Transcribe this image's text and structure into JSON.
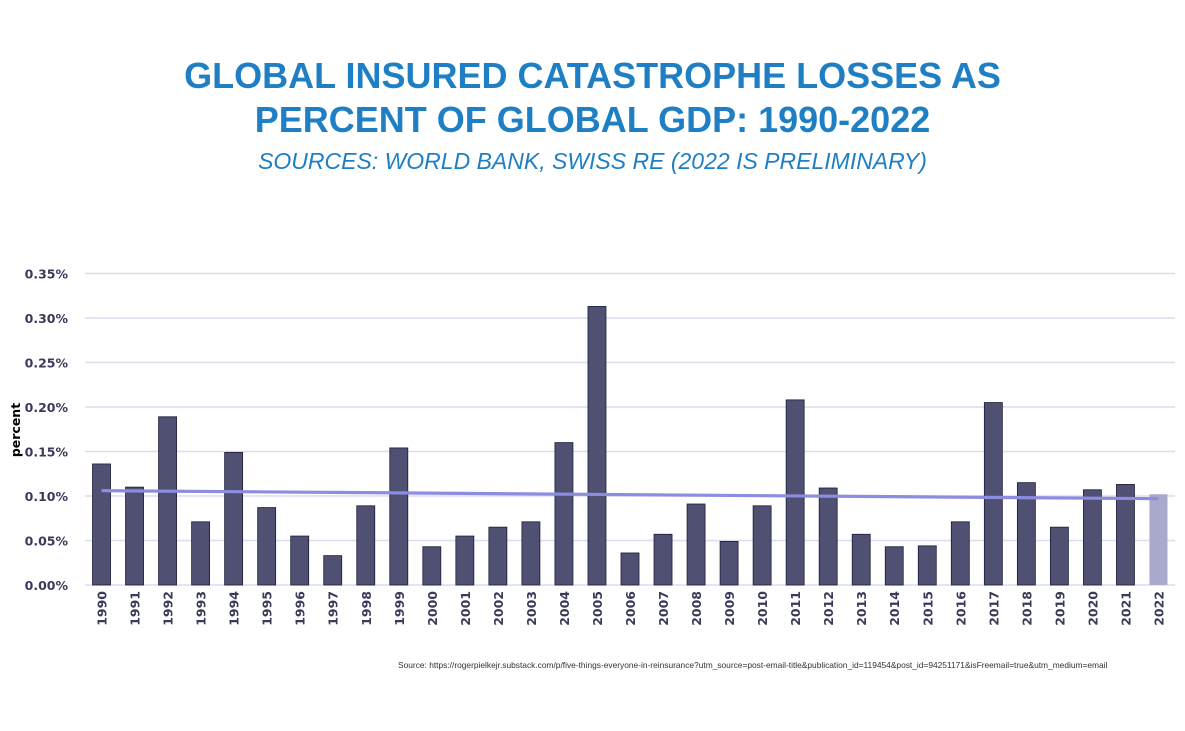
{
  "chart_data": {
    "type": "bar",
    "title": "GLOBAL INSURED CATASTROPHE LOSSES AS PERCENT OF GLOBAL GDP: 1990-2022",
    "title_lines": [
      "GLOBAL INSURED CATASTROPHE LOSSES AS",
      "PERCENT OF GLOBAL GDP: 1990-2022"
    ],
    "subtitle": "SOURCES: WORLD BANK, SWISS RE (2022 IS PRELIMINARY)",
    "xlabel": "",
    "ylabel": "percent",
    "ylim": [
      0,
      0.35
    ],
    "yticks": [
      0,
      0.05,
      0.1,
      0.15,
      0.2,
      0.25,
      0.3,
      0.35
    ],
    "ytick_labels": [
      "0.00%",
      "0.05%",
      "0.10%",
      "0.15%",
      "0.20%",
      "0.25%",
      "0.30%",
      "0.35%"
    ],
    "grid": true,
    "categories": [
      "1990",
      "1991",
      "1992",
      "1993",
      "1994",
      "1995",
      "1996",
      "1997",
      "1998",
      "1999",
      "2000",
      "2001",
      "2002",
      "2003",
      "2004",
      "2005",
      "2006",
      "2007",
      "2008",
      "2009",
      "2010",
      "2011",
      "2012",
      "2013",
      "2014",
      "2015",
      "2016",
      "2017",
      "2018",
      "2019",
      "2020",
      "2021",
      "2022"
    ],
    "values": [
      0.136,
      0.11,
      0.189,
      0.071,
      0.149,
      0.087,
      0.055,
      0.033,
      0.089,
      0.154,
      0.043,
      0.055,
      0.065,
      0.071,
      0.16,
      0.313,
      0.036,
      0.057,
      0.091,
      0.049,
      0.089,
      0.208,
      0.109,
      0.057,
      0.043,
      0.044,
      0.071,
      0.205,
      0.115,
      0.065,
      0.107,
      0.113,
      0.102
    ],
    "preliminary_category": "2022",
    "trendline": {
      "type": "linear",
      "start": 0.106,
      "end": 0.097
    },
    "colors": {
      "bar": "#505073",
      "bar_preliminary": "#a9a9cc",
      "trend": "#8c8ce0",
      "grid": "#dcdcf0",
      "title": "#1f7fc4"
    }
  },
  "source_note": "Source:  https://rogerpielkejr.substack.com/p/five-things-everyone-in-reinsurance?utm_source=post-email-title&publication_id=119454&post_id=94251171&isFreemail=true&utm_medium=email"
}
